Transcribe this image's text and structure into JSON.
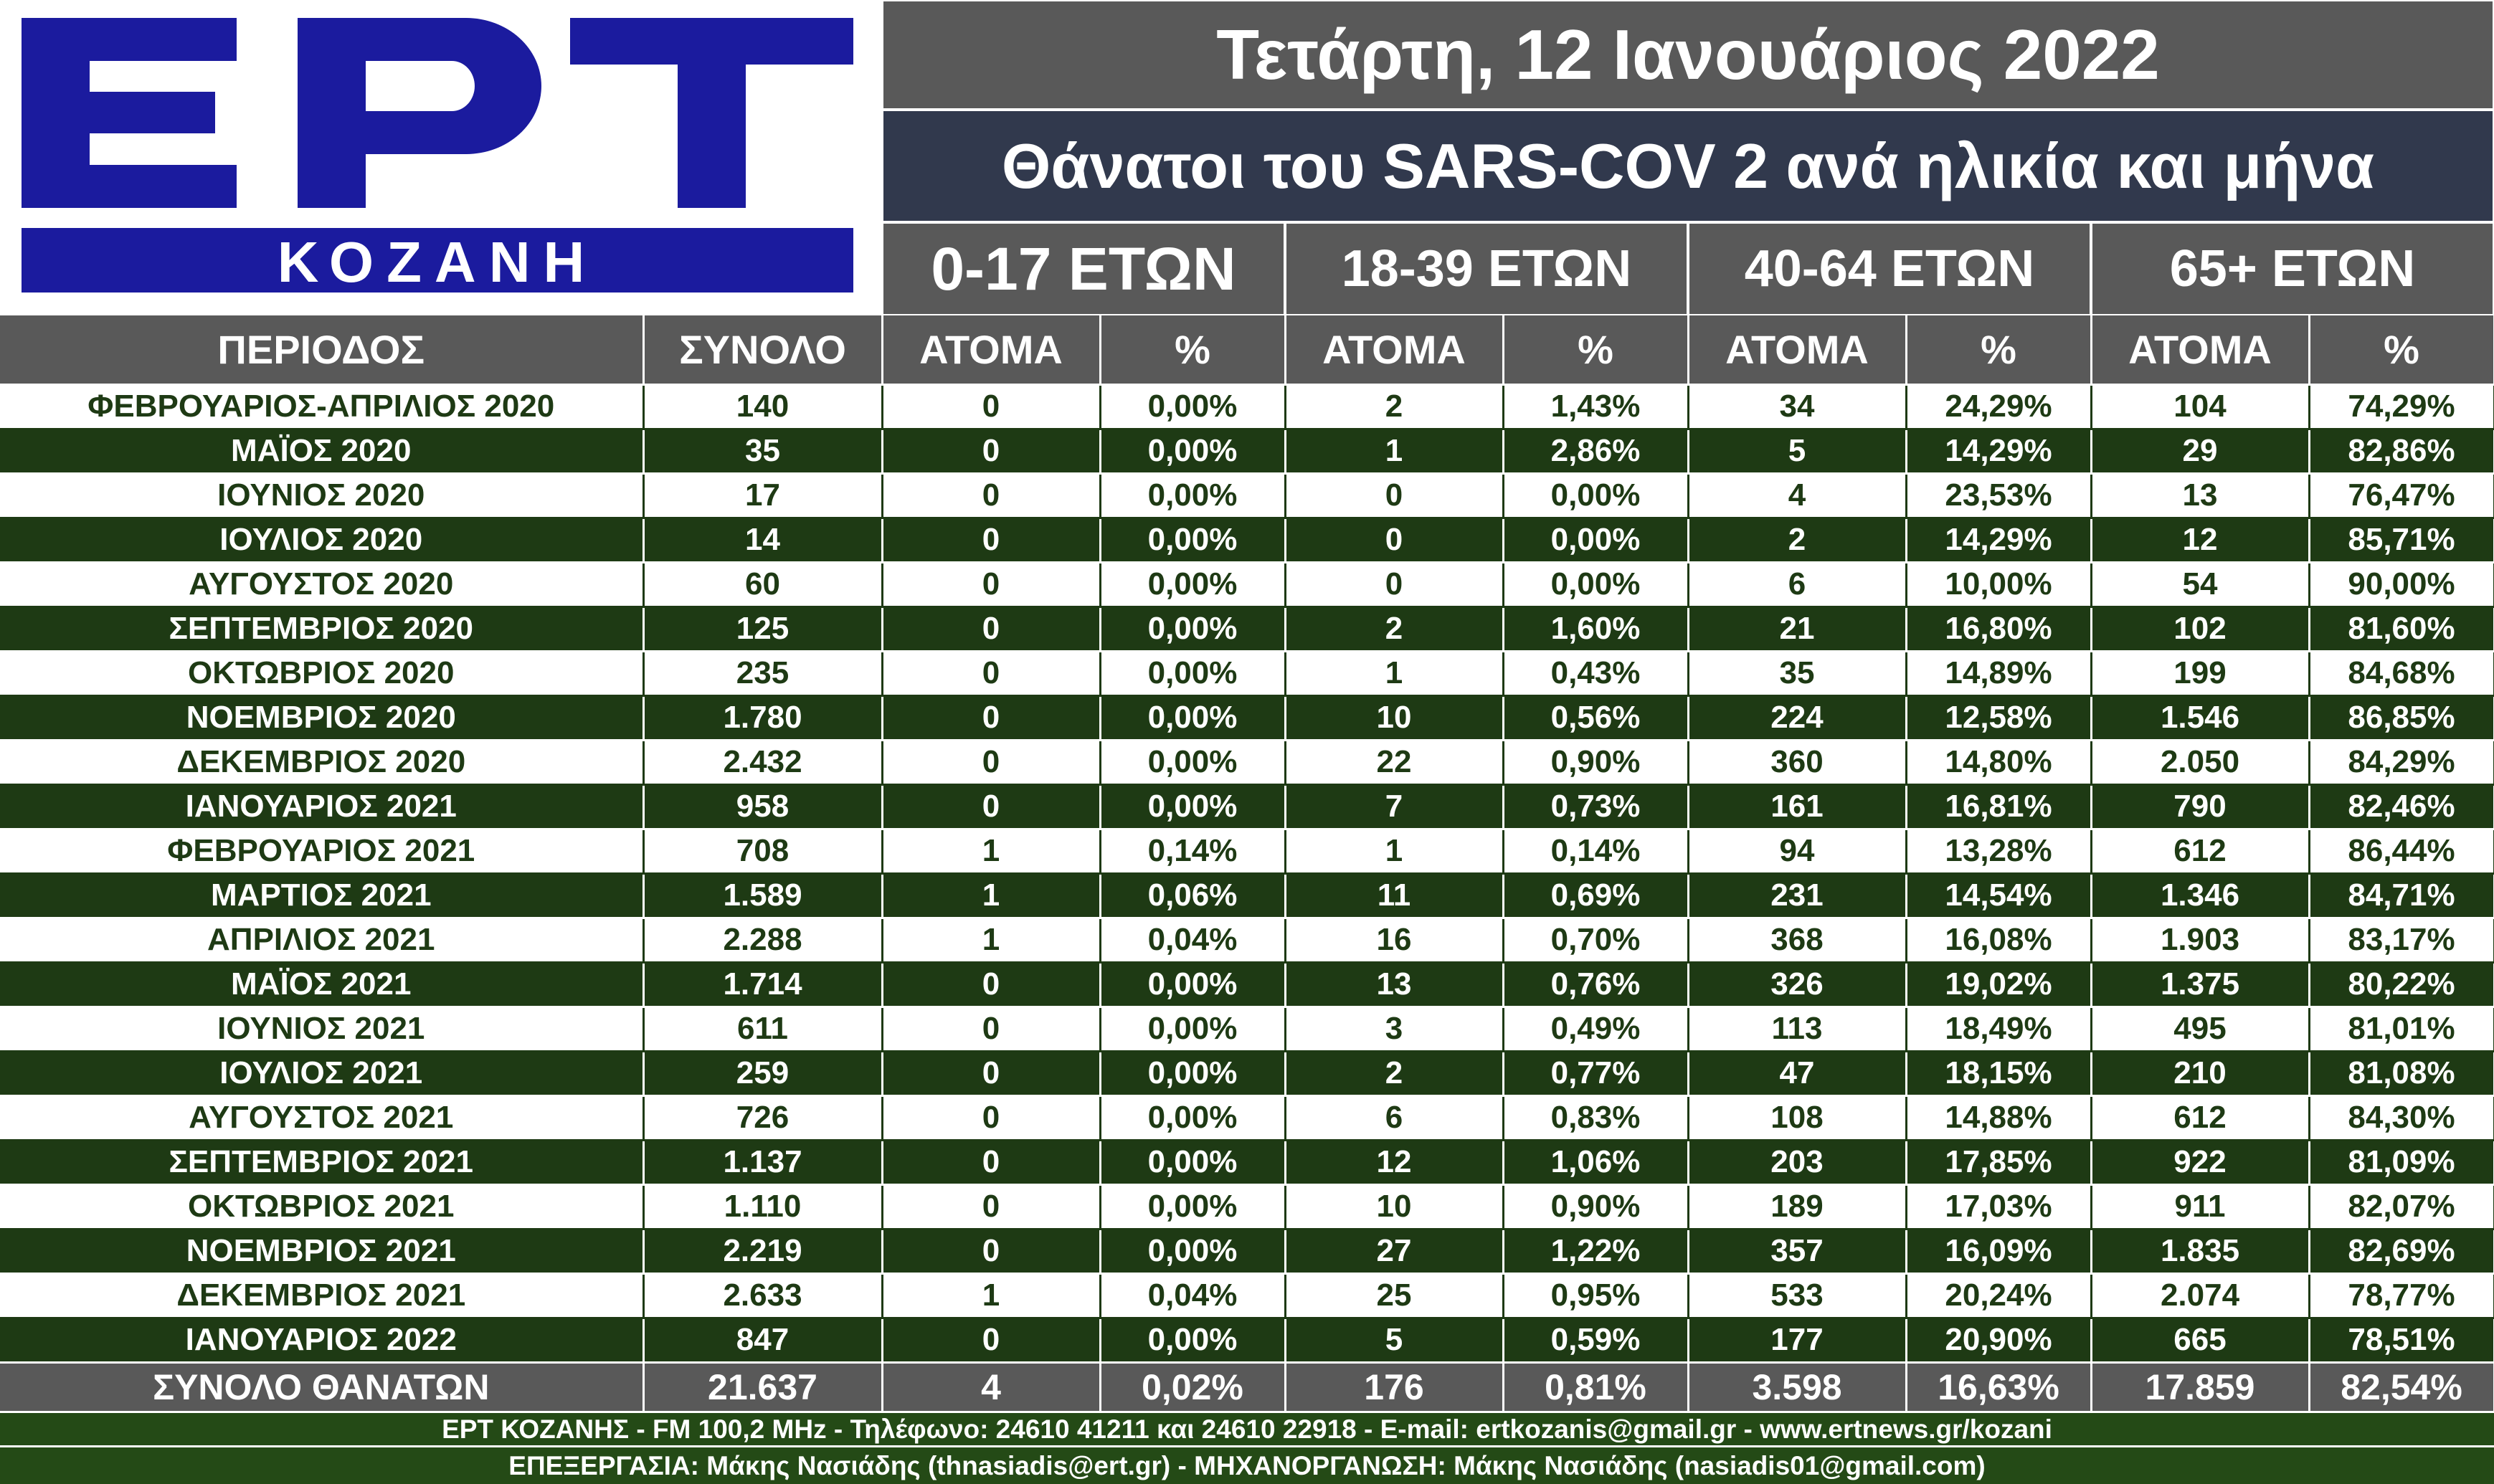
{
  "logo": {
    "main": "ΕΡΤ",
    "sub": "ΚΟΖΑΝΗ"
  },
  "header": {
    "date": "Τετάρτη, 12 Ιανουάριος 2022",
    "title": "Θάνατοι του SARS-COV 2 ανά ηλικία και μήνα"
  },
  "age_groups": [
    "0-17 ΕΤΩΝ",
    "18-39 ΕΤΩΝ",
    "40-64 ΕΤΩΝ",
    "65+  ΕΤΩΝ"
  ],
  "columns": [
    "ΠΕΡΙΟΔΟΣ",
    "ΣΥΝΟΛΟ",
    "ΑΤΟΜΑ",
    "%",
    "ΑΤΟΜΑ",
    "%",
    "ΑΤΟΜΑ",
    "%",
    "ΑΤΟΜΑ",
    "%"
  ],
  "rows": [
    [
      "ΦΕΒΡΟΥΑΡΙΟΣ-ΑΠΡΙΛΙΟΣ 2020",
      "140",
      "0",
      "0,00%",
      "2",
      "1,43%",
      "34",
      "24,29%",
      "104",
      "74,29%"
    ],
    [
      "ΜΑΪΟΣ 2020",
      "35",
      "0",
      "0,00%",
      "1",
      "2,86%",
      "5",
      "14,29%",
      "29",
      "82,86%"
    ],
    [
      "ΙΟΥΝΙΟΣ 2020",
      "17",
      "0",
      "0,00%",
      "0",
      "0,00%",
      "4",
      "23,53%",
      "13",
      "76,47%"
    ],
    [
      "ΙΟΥΛΙΟΣ 2020",
      "14",
      "0",
      "0,00%",
      "0",
      "0,00%",
      "2",
      "14,29%",
      "12",
      "85,71%"
    ],
    [
      "ΑΥΓΟΥΣΤΟΣ 2020",
      "60",
      "0",
      "0,00%",
      "0",
      "0,00%",
      "6",
      "10,00%",
      "54",
      "90,00%"
    ],
    [
      "ΣΕΠΤΕΜΒΡΙΟΣ 2020",
      "125",
      "0",
      "0,00%",
      "2",
      "1,60%",
      "21",
      "16,80%",
      "102",
      "81,60%"
    ],
    [
      "ΟΚΤΩΒΡΙΟΣ 2020",
      "235",
      "0",
      "0,00%",
      "1",
      "0,43%",
      "35",
      "14,89%",
      "199",
      "84,68%"
    ],
    [
      "ΝΟΕΜΒΡΙΟΣ 2020",
      "1.780",
      "0",
      "0,00%",
      "10",
      "0,56%",
      "224",
      "12,58%",
      "1.546",
      "86,85%"
    ],
    [
      "ΔΕΚΕΜΒΡΙΟΣ 2020",
      "2.432",
      "0",
      "0,00%",
      "22",
      "0,90%",
      "360",
      "14,80%",
      "2.050",
      "84,29%"
    ],
    [
      "ΙΑΝΟΥΑΡΙΟΣ 2021",
      "958",
      "0",
      "0,00%",
      "7",
      "0,73%",
      "161",
      "16,81%",
      "790",
      "82,46%"
    ],
    [
      "ΦΕΒΡΟΥΑΡΙΟΣ 2021",
      "708",
      "1",
      "0,14%",
      "1",
      "0,14%",
      "94",
      "13,28%",
      "612",
      "86,44%"
    ],
    [
      "ΜΑΡΤΙΟΣ 2021",
      "1.589",
      "1",
      "0,06%",
      "11",
      "0,69%",
      "231",
      "14,54%",
      "1.346",
      "84,71%"
    ],
    [
      "ΑΠΡΙΛΙΟΣ 2021",
      "2.288",
      "1",
      "0,04%",
      "16",
      "0,70%",
      "368",
      "16,08%",
      "1.903",
      "83,17%"
    ],
    [
      "ΜΑΪΟΣ 2021",
      "1.714",
      "0",
      "0,00%",
      "13",
      "0,76%",
      "326",
      "19,02%",
      "1.375",
      "80,22%"
    ],
    [
      "ΙΟΥΝΙΟΣ 2021",
      "611",
      "0",
      "0,00%",
      "3",
      "0,49%",
      "113",
      "18,49%",
      "495",
      "81,01%"
    ],
    [
      "ΙΟΥΛΙΟΣ 2021",
      "259",
      "0",
      "0,00%",
      "2",
      "0,77%",
      "47",
      "18,15%",
      "210",
      "81,08%"
    ],
    [
      "ΑΥΓΟΥΣΤΟΣ 2021",
      "726",
      "0",
      "0,00%",
      "6",
      "0,83%",
      "108",
      "14,88%",
      "612",
      "84,30%"
    ],
    [
      "ΣΕΠΤΕΜΒΡΙΟΣ 2021",
      "1.137",
      "0",
      "0,00%",
      "12",
      "1,06%",
      "203",
      "17,85%",
      "922",
      "81,09%"
    ],
    [
      "ΟΚΤΩΒΡΙΟΣ 2021",
      "1.110",
      "0",
      "0,00%",
      "10",
      "0,90%",
      "189",
      "17,03%",
      "911",
      "82,07%"
    ],
    [
      "ΝΟΕΜΒΡΙΟΣ 2021",
      "2.219",
      "0",
      "0,00%",
      "27",
      "1,22%",
      "357",
      "16,09%",
      "1.835",
      "82,69%"
    ],
    [
      "ΔΕΚΕΜΒΡΙΟΣ 2021",
      "2.633",
      "1",
      "0,04%",
      "25",
      "0,95%",
      "533",
      "20,24%",
      "2.074",
      "78,77%"
    ],
    [
      "ΙΑΝΟΥΑΡΙΟΣ 2022",
      "847",
      "0",
      "0,00%",
      "5",
      "0,59%",
      "177",
      "20,90%",
      "665",
      "78,51%"
    ]
  ],
  "totals": [
    "ΣΥΝΟΛΟ ΘΑΝΑΤΩΝ",
    "21.637",
    "4",
    "0,02%",
    "176",
    "0,81%",
    "3.598",
    "16,63%",
    "17.859",
    "82,54%"
  ],
  "footer": {
    "line1": "ΕΡΤ ΚΟΖΑΝΗΣ - FM 100,2 MHz - Τηλέφωνο:  24610 41211 και 24610 22918 - E-mail: ertkozanis@gmail.gr - www.ertnews.gr/kozani",
    "line2": "ΕΠΕΞΕΡΓΑΣΙΑ: Μάκης Νασιάδης (thnasiadis@ert.gr) - ΜΗΧΑΝΟΡΓΑΝΩΣΗ: Μάκης Νασιάδης (nasiadis01@gmail.com)"
  },
  "colors": {
    "logo_blue": "#1b1b9e",
    "dark_green": "#1e3a14",
    "header_gray": "#595959",
    "title_navy": "#31394d"
  }
}
